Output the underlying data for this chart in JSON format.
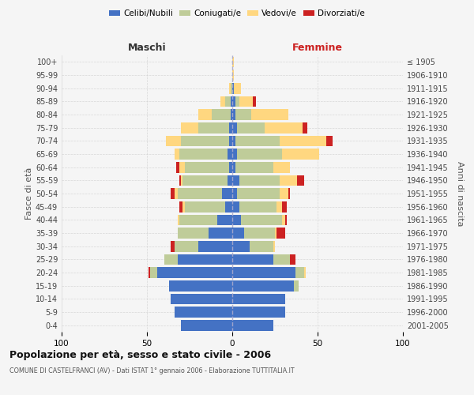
{
  "age_groups": [
    "0-4",
    "5-9",
    "10-14",
    "15-19",
    "20-24",
    "25-29",
    "30-34",
    "35-39",
    "40-44",
    "45-49",
    "50-54",
    "55-59",
    "60-64",
    "65-69",
    "70-74",
    "75-79",
    "80-84",
    "85-89",
    "90-94",
    "95-99",
    "100+"
  ],
  "birth_years": [
    "2001-2005",
    "1996-2000",
    "1991-1995",
    "1986-1990",
    "1981-1985",
    "1976-1980",
    "1971-1975",
    "1966-1970",
    "1961-1965",
    "1956-1960",
    "1951-1955",
    "1946-1950",
    "1941-1945",
    "1936-1940",
    "1931-1935",
    "1926-1930",
    "1921-1925",
    "1916-1920",
    "1911-1915",
    "1906-1910",
    "≤ 1905"
  ],
  "males_single": [
    30,
    34,
    36,
    37,
    44,
    32,
    20,
    14,
    9,
    4,
    6,
    3,
    2,
    3,
    2,
    2,
    1,
    1,
    0,
    0,
    0
  ],
  "males_married": [
    0,
    0,
    0,
    0,
    4,
    8,
    14,
    18,
    22,
    24,
    26,
    26,
    26,
    28,
    28,
    18,
    11,
    3,
    1,
    0,
    0
  ],
  "males_widowed": [
    0,
    0,
    0,
    0,
    0,
    0,
    0,
    0,
    1,
    1,
    2,
    1,
    3,
    3,
    9,
    10,
    8,
    3,
    1,
    0,
    0
  ],
  "males_divorced": [
    0,
    0,
    0,
    0,
    1,
    0,
    2,
    0,
    0,
    2,
    2,
    1,
    2,
    0,
    0,
    0,
    0,
    0,
    0,
    0,
    0
  ],
  "females_single": [
    24,
    31,
    31,
    36,
    37,
    24,
    10,
    7,
    5,
    4,
    3,
    4,
    2,
    3,
    2,
    3,
    2,
    2,
    1,
    0,
    0
  ],
  "females_married": [
    0,
    0,
    0,
    3,
    5,
    10,
    14,
    18,
    24,
    22,
    25,
    24,
    22,
    26,
    26,
    16,
    9,
    2,
    0,
    0,
    0
  ],
  "females_widowed": [
    0,
    0,
    0,
    0,
    1,
    0,
    1,
    1,
    2,
    3,
    5,
    10,
    10,
    22,
    27,
    22,
    22,
    8,
    4,
    1,
    1
  ],
  "females_divorced": [
    0,
    0,
    0,
    0,
    0,
    3,
    0,
    5,
    1,
    3,
    1,
    4,
    0,
    0,
    4,
    3,
    0,
    2,
    0,
    0,
    0
  ],
  "color_single": "#4472C4",
  "color_married": "#BFCC99",
  "color_widowed": "#FFD780",
  "color_divorced": "#CC2222",
  "title": "Popolazione per età, sesso e stato civile - 2006",
  "subtitle": "COMUNE DI CASTELFRANCI (AV) - Dati ISTAT 1° gennaio 2006 - Elaborazione TUTTITALIA.IT",
  "ylabel_left": "Fasce di età",
  "ylabel_right": "Anni di nascita",
  "xlabel_left": "Maschi",
  "xlabel_right": "Femmine",
  "xlim": 100,
  "bg_color": "#f5f5f5",
  "grid_color": "#cccccc"
}
